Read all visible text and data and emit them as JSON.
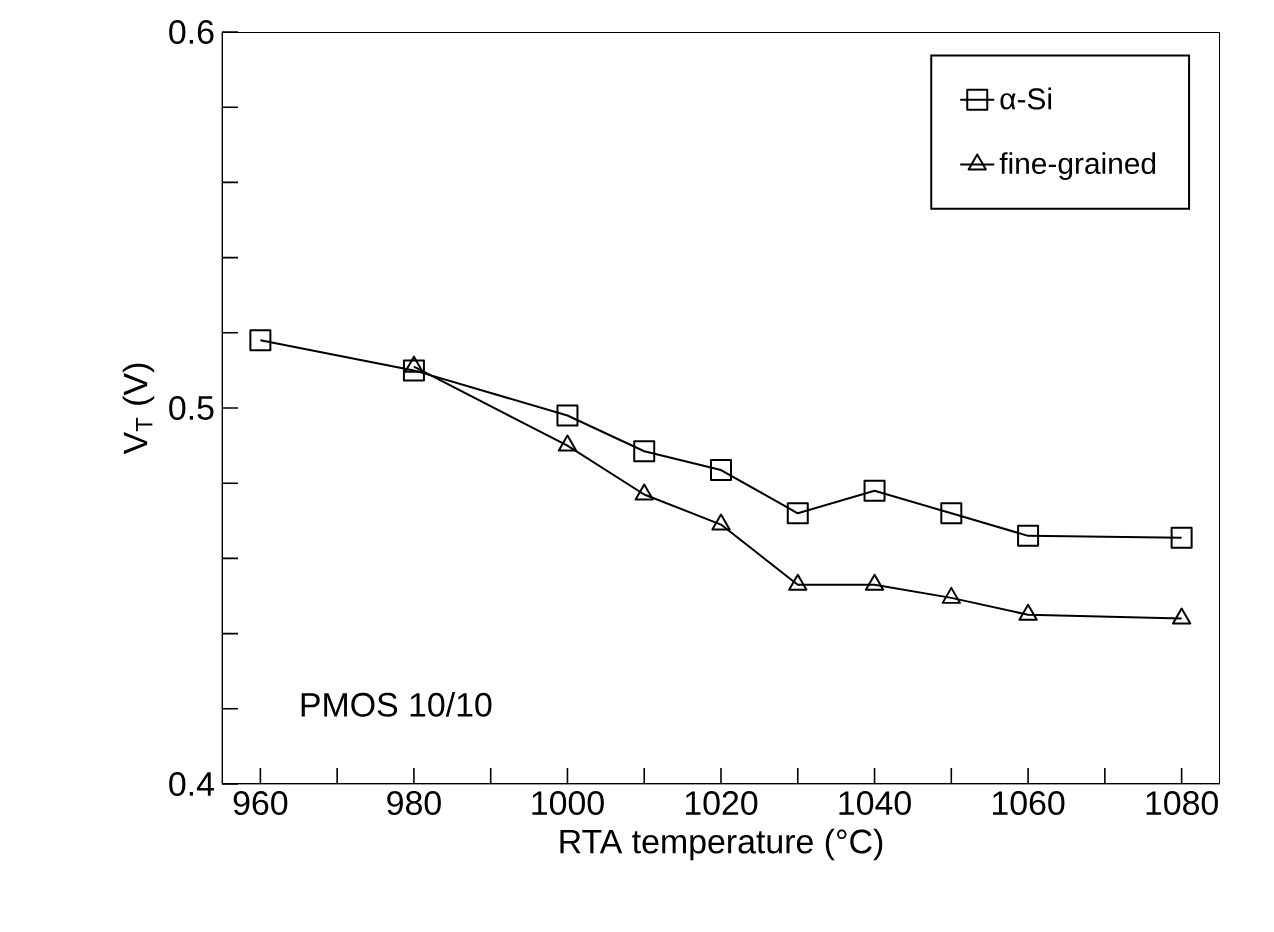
{
  "chart_data": {
    "type": "line",
    "xlabel": "RTA temperature (°C)",
    "ylabel": "V$_{T}$ (V)",
    "series": [
      {
        "name": "α-Si",
        "color": "#000000",
        "marker": "square",
        "x": [
          960,
          980,
          1000,
          1010,
          1020,
          1030,
          1040,
          1050,
          1060,
          1080
        ],
        "values": [
          0.518,
          0.51,
          0.498,
          0.4885,
          0.4835,
          0.472,
          0.478,
          0.472,
          0.466,
          0.4655
        ]
      },
      {
        "name": "fine-grained",
        "color": "#000000",
        "marker": "triangle",
        "x": [
          980,
          1000,
          1010,
          1020,
          1030,
          1040,
          1050,
          1060,
          1080
        ],
        "values": [
          0.511,
          0.49,
          0.477,
          0.469,
          0.453,
          0.453,
          0.4495,
          0.445,
          0.444
        ]
      }
    ],
    "xlim": [
      955,
      1085
    ],
    "ylim": [
      0.4,
      0.6
    ],
    "xticks": [
      960,
      {
        "value": 970,
        "label": null
      },
      980,
      {
        "value": 990,
        "label": null
      },
      1000,
      {
        "value": 1010,
        "label": null
      },
      1020,
      {
        "value": 1030,
        "label": null
      },
      1040,
      {
        "value": 1050,
        "label": null
      },
      1060,
      {
        "value": 1070,
        "label": null
      },
      1080
    ],
    "yticks": [
      0.4,
      {
        "value": 0.42,
        "label": null
      },
      {
        "value": 0.44,
        "label": null
      },
      {
        "value": 0.46,
        "label": null
      },
      {
        "value": 0.48,
        "label": null
      },
      0.5,
      {
        "value": 0.52,
        "label": null
      },
      {
        "value": 0.54,
        "label": null
      },
      {
        "value": 0.56,
        "label": null
      },
      {
        "value": 0.58,
        "label": null
      },
      0.6
    ],
    "annotations": [
      "PMOS 10/10"
    ],
    "legend": "top right",
    "grid": false,
    "line_style": "solid"
  }
}
